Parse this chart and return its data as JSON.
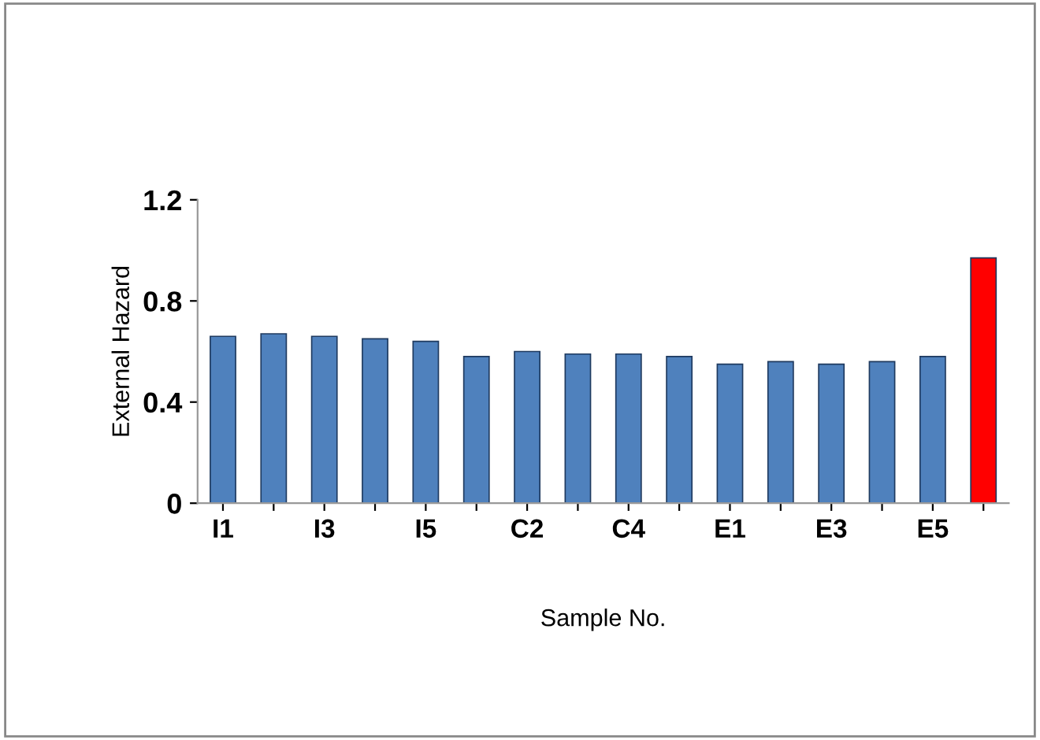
{
  "chart_data": {
    "type": "bar",
    "xlabel": "Sample No.",
    "ylabel": "External Hazard",
    "categories": [
      "I1",
      null,
      "I3",
      null,
      "I5",
      null,
      "C2",
      null,
      "C4",
      null,
      "E1",
      null,
      "E3",
      null,
      "E5",
      null
    ],
    "values": [
      0.66,
      0.67,
      0.66,
      0.65,
      0.64,
      0.58,
      0.6,
      0.59,
      0.59,
      0.58,
      0.55,
      0.56,
      0.55,
      0.56,
      0.58,
      0.97
    ],
    "colors": [
      "#4f81bd",
      "#4f81bd",
      "#4f81bd",
      "#4f81bd",
      "#4f81bd",
      "#4f81bd",
      "#4f81bd",
      "#4f81bd",
      "#4f81bd",
      "#4f81bd",
      "#4f81bd",
      "#4f81bd",
      "#4f81bd",
      "#4f81bd",
      "#4f81bd",
      "#ff0000"
    ],
    "ylim": [
      0,
      1.2
    ],
    "yticks": [
      0,
      0.4,
      0.8,
      1.2
    ],
    "grid": false,
    "legend": false
  }
}
